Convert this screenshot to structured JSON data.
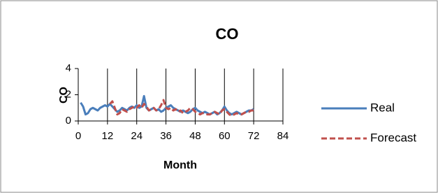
{
  "chart_data": {
    "type": "line",
    "title": "CO",
    "x_label": "Month",
    "y_label": "CO",
    "x": [
      1,
      2,
      3,
      4,
      5,
      6,
      7,
      8,
      9,
      10,
      11,
      12,
      13,
      14,
      15,
      16,
      17,
      18,
      19,
      20,
      21,
      22,
      23,
      24,
      25,
      26,
      27,
      28,
      29,
      30,
      31,
      32,
      33,
      34,
      35,
      36,
      37,
      38,
      39,
      40,
      41,
      42,
      43,
      44,
      45,
      46,
      47,
      48,
      49,
      50,
      51,
      52,
      53,
      54,
      55,
      56,
      57,
      58,
      59,
      60,
      61,
      62,
      63,
      64,
      65,
      66,
      67,
      68,
      69,
      70,
      71,
      72
    ],
    "series": [
      {
        "name": "Real",
        "color": "#4a7ebb",
        "dashed": false,
        "values": [
          1.4,
          1.1,
          0.5,
          0.6,
          0.9,
          1.0,
          0.9,
          0.8,
          1.0,
          1.1,
          1.2,
          1.1,
          1.3,
          1.1,
          0.9,
          0.7,
          0.8,
          1.0,
          0.9,
          0.8,
          1.0,
          1.1,
          1.0,
          1.2,
          1.0,
          1.1,
          1.9,
          1.0,
          0.8,
          0.9,
          1.0,
          0.8,
          0.9,
          0.7,
          0.8,
          1.0,
          1.1,
          1.2,
          1.0,
          0.9,
          0.8,
          0.7,
          0.8,
          0.7,
          0.6,
          0.7,
          0.9,
          1.0,
          0.8,
          0.7,
          0.6,
          0.7,
          0.6,
          0.5,
          0.6,
          0.7,
          0.5,
          0.6,
          0.8,
          1.1,
          0.8,
          0.6,
          0.5,
          0.6,
          0.7,
          0.6,
          0.5,
          0.6,
          0.7,
          0.8,
          0.8,
          0.9
        ]
      },
      {
        "name": "Forecast",
        "color": "#c0504d",
        "dashed": true,
        "values": [
          null,
          null,
          null,
          null,
          null,
          null,
          null,
          null,
          null,
          null,
          null,
          null,
          1.3,
          1.5,
          1.0,
          0.5,
          0.6,
          0.9,
          0.8,
          0.7,
          0.9,
          1.0,
          1.1,
          1.0,
          1.2,
          1.0,
          1.3,
          1.1,
          0.8,
          0.9,
          1.0,
          0.8,
          0.9,
          1.2,
          1.6,
          1.0,
          0.9,
          1.0,
          0.8,
          0.9,
          0.7,
          0.8,
          0.6,
          0.7,
          0.8,
          1.0,
          0.9,
          0.7,
          0.6,
          0.5,
          0.6,
          0.6,
          0.5,
          0.5,
          0.6,
          0.7,
          0.6,
          0.5,
          0.8,
          0.9,
          0.7,
          0.5,
          0.4,
          0.5,
          0.6,
          0.5,
          0.5,
          0.6,
          0.7,
          0.7,
          0.8,
          0.8
        ]
      }
    ],
    "xlim": [
      0,
      84
    ],
    "xticks": [
      0,
      12,
      24,
      36,
      48,
      60,
      72,
      84
    ],
    "ylim": [
      0,
      4
    ],
    "yticks": [
      0,
      2,
      4
    ],
    "grid": "x"
  }
}
